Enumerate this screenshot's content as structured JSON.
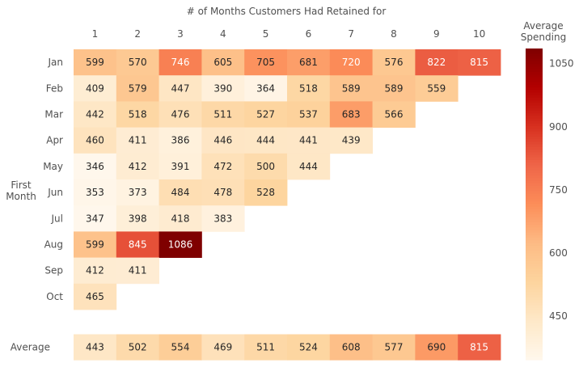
{
  "chart_data": {
    "type": "heatmap",
    "title": "# of Months Customers Had Retained for",
    "xlabel": "",
    "ylabel": "First\nMonth",
    "columns": [
      "1",
      "2",
      "3",
      "4",
      "5",
      "6",
      "7",
      "8",
      "9",
      "10"
    ],
    "rows": [
      "Jan",
      "Feb",
      "Mar",
      "Apr",
      "May",
      "Jun",
      "Jul",
      "Aug",
      "Sep",
      "Oct"
    ],
    "values": [
      [
        599,
        570,
        746,
        605,
        705,
        681,
        720,
        576,
        822,
        815
      ],
      [
        409,
        579,
        447,
        390,
        364,
        518,
        589,
        589,
        559,
        null
      ],
      [
        442,
        518,
        476,
        511,
        527,
        537,
        683,
        566,
        null,
        null
      ],
      [
        460,
        411,
        386,
        446,
        444,
        441,
        439,
        null,
        null,
        null
      ],
      [
        346,
        412,
        391,
        472,
        500,
        444,
        null,
        null,
        null,
        null
      ],
      [
        353,
        373,
        484,
        478,
        528,
        null,
        null,
        null,
        null,
        null
      ],
      [
        347,
        398,
        418,
        383,
        null,
        null,
        null,
        null,
        null,
        null
      ],
      [
        599,
        845,
        1086,
        null,
        null,
        null,
        null,
        null,
        null,
        null
      ],
      [
        412,
        411,
        null,
        null,
        null,
        null,
        null,
        null,
        null,
        null
      ],
      [
        465,
        null,
        null,
        null,
        null,
        null,
        null,
        null,
        null,
        null
      ]
    ],
    "average_row": {
      "label": "Average",
      "values": [
        443,
        502,
        554,
        469,
        511,
        524,
        608,
        577,
        690,
        815
      ]
    },
    "colorbar": {
      "title": "Average\nSpending",
      "range": [
        346,
        1086
      ],
      "ticks": [
        450,
        600,
        750,
        900,
        1050
      ],
      "colormap": "OrRd"
    }
  }
}
